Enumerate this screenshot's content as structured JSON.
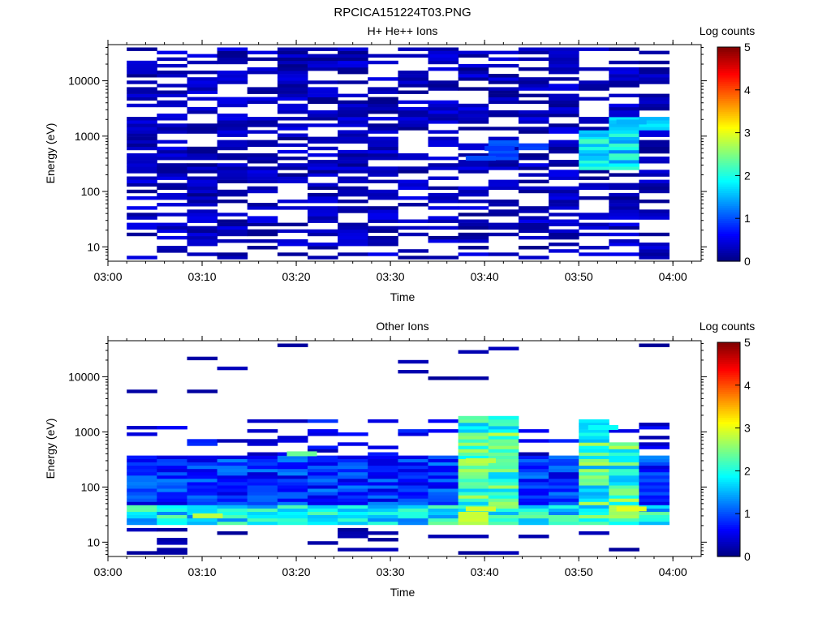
{
  "figure_title": "RPCICA151224T03.PNG",
  "chart_data": [
    {
      "type": "heatmap",
      "title": "H+ He++ Ions",
      "xlabel": "Time",
      "ylabel": "Energy (eV)",
      "xlim": [
        "03:00",
        "04:03"
      ],
      "ylim": [
        5.5,
        45000
      ],
      "yscale": "log",
      "x_ticks": [
        "03:00",
        "03:10",
        "03:20",
        "03:30",
        "03:40",
        "03:50",
        "04:00"
      ],
      "y_ticks": [
        "10",
        "100",
        "1000",
        "10000"
      ],
      "colorbar": {
        "label": "Log counts",
        "min": 0,
        "max": 5,
        "ticks": [
          "0",
          "1",
          "2",
          "3",
          "4",
          "5"
        ]
      },
      "time_bin_minutes": 3.2,
      "num_time_bins": 18,
      "description_of_values": "sparse low counts (~0.1-0.6 log counts) at most energies; enhancement near 03:50-03:56 around 300-2000 eV up to ~2.2 log counts",
      "hotspots": [
        {
          "time": "03:50",
          "energy_eV": 800,
          "log_counts": 2.2
        },
        {
          "time": "03:50",
          "energy_eV": 400,
          "log_counts": 1.6
        },
        {
          "time": "03:54",
          "energy_eV": 1800,
          "log_counts": 1.5
        },
        {
          "time": "03:40",
          "energy_eV": 600,
          "log_counts": 0.9
        },
        {
          "time": "03:38",
          "energy_eV": 400,
          "log_counts": 1.0
        }
      ]
    },
    {
      "type": "heatmap",
      "title": "Other Ions",
      "xlabel": "Time",
      "ylabel": "Energy (eV)",
      "xlim": [
        "03:00",
        "04:03"
      ],
      "ylim": [
        5.5,
        45000
      ],
      "yscale": "log",
      "x_ticks": [
        "03:00",
        "03:10",
        "03:20",
        "03:30",
        "03:40",
        "03:50",
        "04:00"
      ],
      "y_ticks": [
        "10",
        "100",
        "1000",
        "10000"
      ],
      "colorbar": {
        "label": "Log counts",
        "min": 0,
        "max": 5,
        "ticks": [
          "0",
          "1",
          "2",
          "3",
          "4",
          "5"
        ]
      },
      "time_bin_minutes": 3.2,
      "num_time_bins": 18,
      "description_of_values": "persistent band 20-500 eV with intensities 1-3 log counts; peaks near 03:10, 03:38 and 03:54 around 30-50 eV",
      "hotspots": [
        {
          "time": "03:09",
          "energy_eV": 30,
          "log_counts": 2.8
        },
        {
          "time": "03:19",
          "energy_eV": 400,
          "log_counts": 2.4
        },
        {
          "time": "03:38",
          "energy_eV": 300,
          "log_counts": 2.8
        },
        {
          "time": "03:38",
          "energy_eV": 40,
          "log_counts": 2.9
        },
        {
          "time": "03:54",
          "energy_eV": 40,
          "log_counts": 3.0
        },
        {
          "time": "03:51",
          "energy_eV": 1200,
          "log_counts": 1.9
        }
      ]
    }
  ]
}
